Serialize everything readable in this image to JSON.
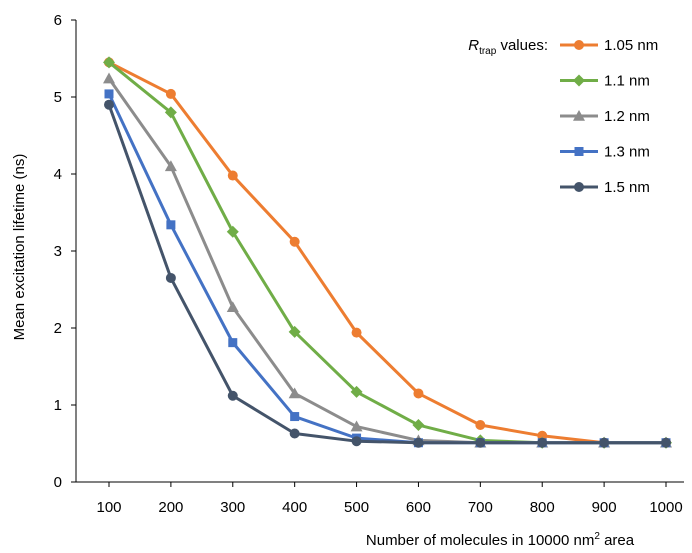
{
  "chart_data": {
    "type": "line",
    "title": "",
    "xlabel_main": "Number of molecules in 10000 nm",
    "xlabel_sup": "2",
    "xlabel_tail": " area",
    "ylabel": "Mean excitation lifetime (ns)",
    "x": [
      100,
      200,
      300,
      400,
      500,
      600,
      700,
      800,
      900,
      1000
    ],
    "xlim": [
      100,
      1000
    ],
    "ylim": [
      0,
      6
    ],
    "y_ticks": [
      "0",
      "1",
      "2",
      "3",
      "4",
      "5",
      "6"
    ],
    "x_ticks": [
      "100",
      "200",
      "300",
      "400",
      "500",
      "600",
      "700",
      "800",
      "900",
      "1000"
    ],
    "grid": false,
    "legend": {
      "position": "top-right",
      "title_main": "R",
      "title_sub": "trap",
      "title_tail": " values:"
    },
    "series": [
      {
        "name": "1.05 nm",
        "color": "#ed7d31",
        "marker": "circle",
        "values": [
          5.45,
          5.04,
          3.98,
          3.12,
          1.94,
          1.15,
          0.74,
          0.6,
          0.51,
          0.51
        ]
      },
      {
        "name": "1.1 nm",
        "color": "#70ad47",
        "marker": "diamond",
        "values": [
          5.45,
          4.8,
          3.25,
          1.95,
          1.17,
          0.74,
          0.54,
          0.51,
          0.51,
          0.51
        ]
      },
      {
        "name": "1.2 nm",
        "color": "#8c8c8c",
        "marker": "triangle",
        "values": [
          5.24,
          4.1,
          2.27,
          1.15,
          0.72,
          0.54,
          0.51,
          0.51,
          0.51,
          0.51
        ]
      },
      {
        "name": "1.3 nm",
        "color": "#4472c4",
        "marker": "square",
        "values": [
          5.04,
          3.34,
          1.81,
          0.85,
          0.57,
          0.51,
          0.51,
          0.51,
          0.51,
          0.51
        ]
      },
      {
        "name": "1.5 nm",
        "color": "#44546a",
        "marker": "circle",
        "values": [
          4.9,
          2.65,
          1.12,
          0.63,
          0.53,
          0.51,
          0.51,
          0.51,
          0.51,
          0.51
        ]
      }
    ]
  }
}
